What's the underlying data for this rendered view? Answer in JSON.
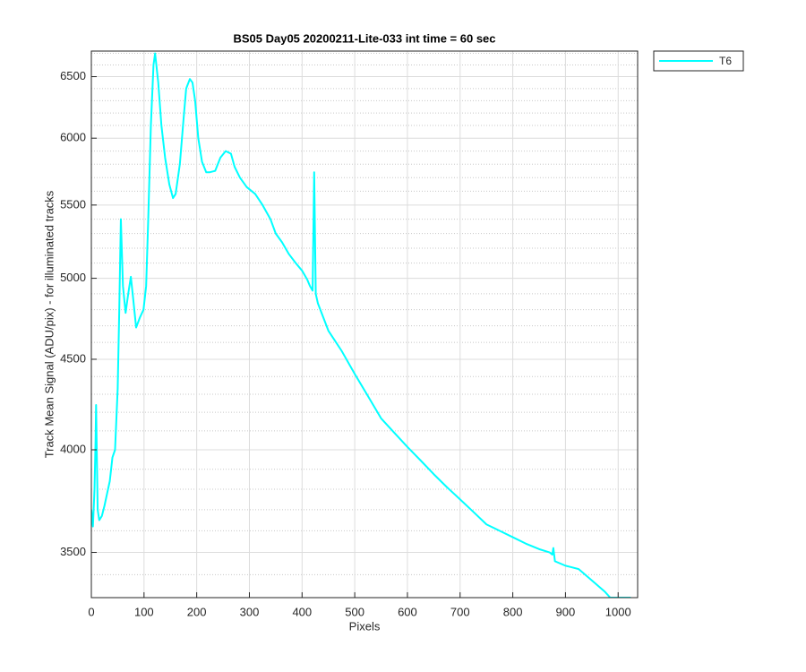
{
  "chart_data": {
    "type": "line",
    "title": "BS05 Day05 20200211-Lite-033 int time = 60 sec",
    "x_label": "Pixels",
    "y_label": "Track Mean Signal (ADU/pix) - for illuminated tracks",
    "yscale": "log",
    "grid": true,
    "legend_position": "outside-right",
    "xlim": [
      0,
      1037
    ],
    "ylim": [
      3300,
      6720
    ],
    "xticks": [
      0,
      100,
      200,
      300,
      400,
      500,
      600,
      700,
      800,
      900,
      1000
    ],
    "yticks": [
      3500,
      4000,
      4500,
      5000,
      5500,
      6000,
      6500
    ],
    "yminorticks": [
      3400,
      3600,
      3700,
      3800,
      3900,
      4100,
      4200,
      4300,
      4400,
      4600,
      4700,
      4800,
      4900,
      5100,
      5200,
      5300,
      5400,
      5600,
      5700,
      5800,
      5900,
      6100,
      6200,
      6300,
      6400,
      6600,
      6700
    ],
    "x": [
      0,
      3,
      6,
      8,
      9,
      12,
      15,
      20,
      25,
      30,
      35,
      40,
      45,
      50,
      53,
      56,
      60,
      65,
      70,
      75,
      80,
      85,
      92,
      99,
      104,
      108,
      113,
      118,
      121,
      127,
      133,
      140,
      148,
      155,
      160,
      168,
      175,
      180,
      187,
      192,
      197,
      203,
      210,
      218,
      225,
      235,
      245,
      255,
      265,
      272,
      282,
      295,
      311,
      325,
      340,
      350,
      362,
      375,
      388,
      400,
      410,
      415,
      420,
      423,
      426,
      430,
      450,
      475,
      500,
      525,
      550,
      575,
      600,
      625,
      650,
      675,
      700,
      725,
      750,
      775,
      800,
      825,
      850,
      870,
      875,
      877,
      880,
      900,
      925,
      950,
      975,
      985,
      1024
    ],
    "series": [
      {
        "name": "T6",
        "color": "#00ffff",
        "values": [
          3700,
          3620,
          3800,
          4050,
          4240,
          3700,
          3650,
          3670,
          3720,
          3780,
          3840,
          3960,
          4000,
          4330,
          4800,
          5400,
          4950,
          4780,
          4900,
          5010,
          4850,
          4690,
          4750,
          4800,
          4950,
          5400,
          6100,
          6600,
          6700,
          6450,
          6100,
          5850,
          5650,
          5550,
          5580,
          5800,
          6150,
          6400,
          6480,
          6450,
          6300,
          6000,
          5820,
          5740,
          5740,
          5750,
          5850,
          5900,
          5880,
          5780,
          5700,
          5630,
          5580,
          5500,
          5400,
          5300,
          5240,
          5160,
          5100,
          5050,
          4990,
          4950,
          4920,
          5740,
          4900,
          4840,
          4670,
          4550,
          4415,
          4290,
          4167,
          4090,
          4015,
          3945,
          3875,
          3810,
          3750,
          3690,
          3630,
          3600,
          3570,
          3540,
          3515,
          3500,
          3490,
          3520,
          3460,
          3440,
          3425,
          3375,
          3325,
          3300,
          3300
        ]
      }
    ]
  }
}
